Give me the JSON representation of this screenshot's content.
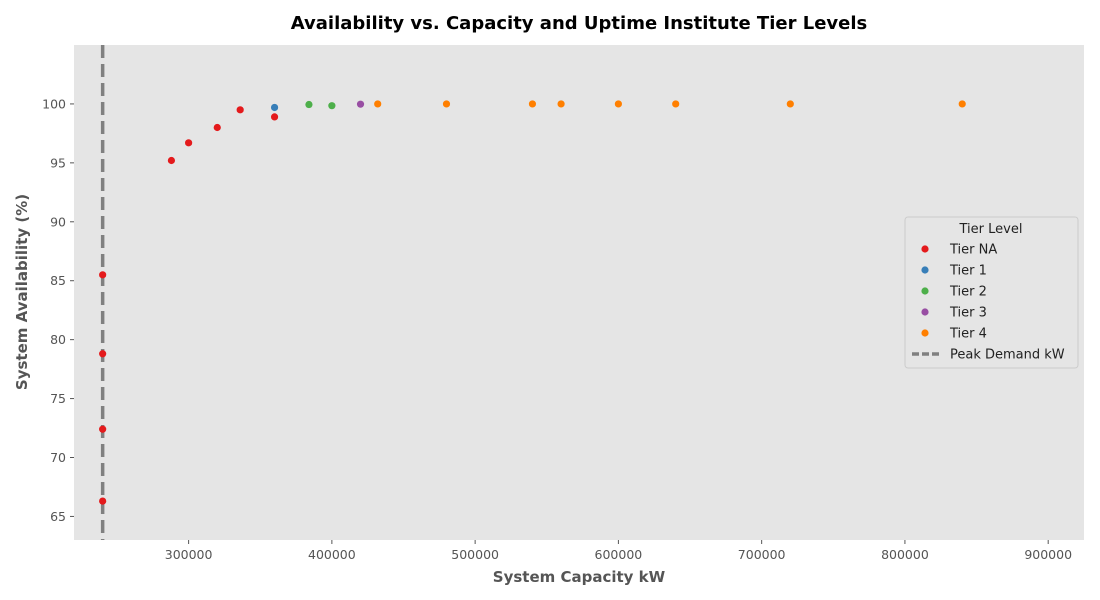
{
  "chart_data": {
    "type": "scatter",
    "title": "Availability vs. Capacity and Uptime Institute Tier Levels",
    "xlabel": "System Capacity kW",
    "ylabel": "System Availability (%)",
    "xlim": [
      220000,
      925000
    ],
    "ylim": [
      63,
      105
    ],
    "x_ticks": [
      300000,
      400000,
      500000,
      600000,
      700000,
      800000,
      900000
    ],
    "y_ticks": [
      65,
      70,
      75,
      80,
      85,
      90,
      95,
      100
    ],
    "grid": false,
    "legend": {
      "title": "Tier Level",
      "placement": "center-right"
    },
    "reference_line": {
      "name": "Peak Demand kW",
      "x": 240000,
      "style": "dashed",
      "color": "#808080"
    },
    "series": [
      {
        "name": "Tier NA",
        "color": "#e41a1c",
        "points": [
          [
            240000,
            66.3
          ],
          [
            240000,
            72.4
          ],
          [
            240000,
            78.8
          ],
          [
            240000,
            85.5
          ],
          [
            288000,
            95.2
          ],
          [
            300000,
            96.7
          ],
          [
            320000,
            98.0
          ],
          [
            336000,
            99.5
          ],
          [
            360000,
            98.9
          ]
        ]
      },
      {
        "name": "Tier 1",
        "color": "#377eb8",
        "points": [
          [
            360000,
            99.7
          ]
        ]
      },
      {
        "name": "Tier 2",
        "color": "#4daf4a",
        "points": [
          [
            384000,
            99.95
          ],
          [
            400000,
            99.85
          ]
        ]
      },
      {
        "name": "Tier 3",
        "color": "#984ea3",
        "points": [
          [
            420000,
            99.98
          ]
        ]
      },
      {
        "name": "Tier 4",
        "color": "#ff7f00",
        "points": [
          [
            432000,
            100
          ],
          [
            480000,
            100
          ],
          [
            540000,
            100
          ],
          [
            560000,
            100
          ],
          [
            600000,
            100
          ],
          [
            640000,
            100
          ],
          [
            720000,
            100
          ],
          [
            840000,
            100
          ]
        ]
      }
    ]
  }
}
